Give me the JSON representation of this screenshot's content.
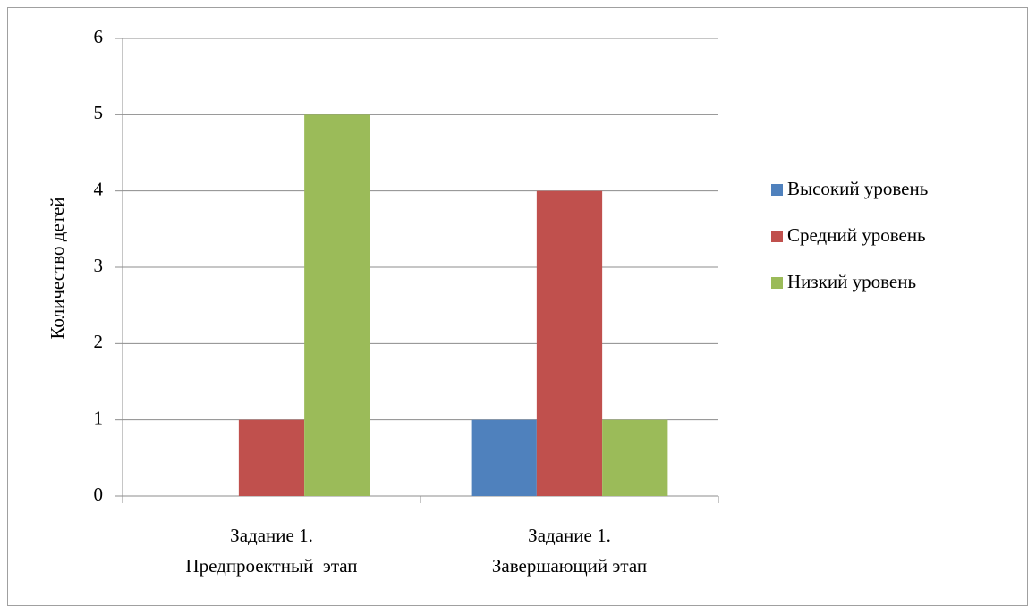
{
  "chart_data": {
    "type": "bar",
    "y_label": "Количество детей",
    "categories": [
      "Задание 1. Предпроектный  этап",
      "Задание 1. Завершающий этап"
    ],
    "series": [
      {
        "name": "Высокий уровень",
        "color": "#4f81bd",
        "values": [
          0,
          1
        ]
      },
      {
        "name": "Средний уровень",
        "color": "#c0504d",
        "values": [
          1,
          4
        ]
      },
      {
        "name": "Низкий уровень",
        "color": "#9bbb59",
        "values": [
          5,
          1
        ]
      }
    ],
    "ylim": [
      0,
      6
    ],
    "yticks": [
      0,
      1,
      2,
      3,
      4,
      5,
      6
    ],
    "grid": true,
    "legend": "right"
  }
}
